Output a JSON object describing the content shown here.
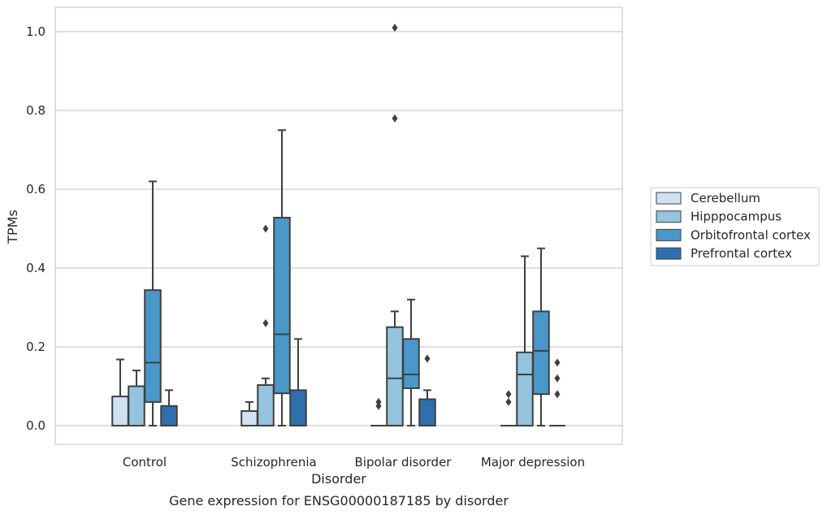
{
  "chart_data": {
    "type": "box",
    "title": "Gene expression for ENSG00000187185 by disorder",
    "xlabel": "Disorder",
    "ylabel": "TPMs",
    "ylim": [
      -0.05,
      1.06
    ],
    "yticks": [
      0.0,
      0.2,
      0.4,
      0.6,
      0.8,
      1.0
    ],
    "ytick_labels": [
      "0.0",
      "0.2",
      "0.4",
      "0.6",
      "0.8",
      "1.0"
    ],
    "grid": "horizontal",
    "legend_position": "right",
    "categories": [
      "Control",
      "Schizophrenia",
      "Bipolar disorder",
      "Major depression"
    ],
    "series": [
      {
        "name": "Cerebellum",
        "color": "#d0e1f2",
        "boxes": [
          {
            "whisker_low": 0,
            "q1": 0,
            "median": 0,
            "q3": 0.074,
            "whisker_high": 0.168,
            "outliers": []
          },
          {
            "whisker_low": 0,
            "q1": 0,
            "median": 0,
            "q3": 0.037,
            "whisker_high": 0.06,
            "outliers": []
          },
          {
            "whisker_low": 0,
            "q1": 0,
            "median": 0,
            "q3": 0,
            "whisker_high": 0,
            "outliers": [
              0.05,
              0.06
            ]
          },
          {
            "whisker_low": 0,
            "q1": 0,
            "median": 0,
            "q3": 0,
            "whisker_high": 0,
            "outliers": [
              0.06,
              0.08
            ]
          }
        ]
      },
      {
        "name": "Hipppocampus",
        "color": "#94c4df",
        "boxes": [
          {
            "whisker_low": 0,
            "q1": 0,
            "median": 0,
            "q3": 0.1,
            "whisker_high": 0.14,
            "outliers": []
          },
          {
            "whisker_low": 0,
            "q1": 0,
            "median": 0,
            "q3": 0.103,
            "whisker_high": 0.12,
            "outliers": [
              0.26,
              0.5
            ]
          },
          {
            "whisker_low": 0,
            "q1": 0,
            "median": 0.12,
            "q3": 0.25,
            "whisker_high": 0.29,
            "outliers": [
              0.78,
              1.01
            ]
          },
          {
            "whisker_low": 0,
            "q1": 0,
            "median": 0.13,
            "q3": 0.186,
            "whisker_high": 0.43,
            "outliers": []
          }
        ]
      },
      {
        "name": "Orbitofrontal cortex",
        "color": "#4a98c9",
        "boxes": [
          {
            "whisker_low": 0,
            "q1": 0.06,
            "median": 0.16,
            "q3": 0.344,
            "whisker_high": 0.62,
            "outliers": []
          },
          {
            "whisker_low": 0,
            "q1": 0.082,
            "median": 0.232,
            "q3": 0.528,
            "whisker_high": 0.75,
            "outliers": []
          },
          {
            "whisker_low": 0,
            "q1": 0.095,
            "median": 0.13,
            "q3": 0.22,
            "whisker_high": 0.32,
            "outliers": []
          },
          {
            "whisker_low": 0,
            "q1": 0.08,
            "median": 0.19,
            "q3": 0.29,
            "whisker_high": 0.45,
            "outliers": []
          }
        ]
      },
      {
        "name": "Prefrontal cortex",
        "color": "#2e6fad",
        "boxes": [
          {
            "whisker_low": 0,
            "q1": 0,
            "median": 0,
            "q3": 0.05,
            "whisker_high": 0.09,
            "outliers": []
          },
          {
            "whisker_low": 0,
            "q1": 0,
            "median": 0,
            "q3": 0.09,
            "whisker_high": 0.22,
            "outliers": []
          },
          {
            "whisker_low": 0,
            "q1": 0,
            "median": 0,
            "q3": 0.067,
            "whisker_high": 0.09,
            "outliers": [
              0.17
            ]
          },
          {
            "whisker_low": 0,
            "q1": 0,
            "median": 0,
            "q3": 0,
            "whisker_high": 0,
            "outliers": [
              0.08,
              0.12,
              0.16
            ]
          }
        ]
      }
    ]
  }
}
